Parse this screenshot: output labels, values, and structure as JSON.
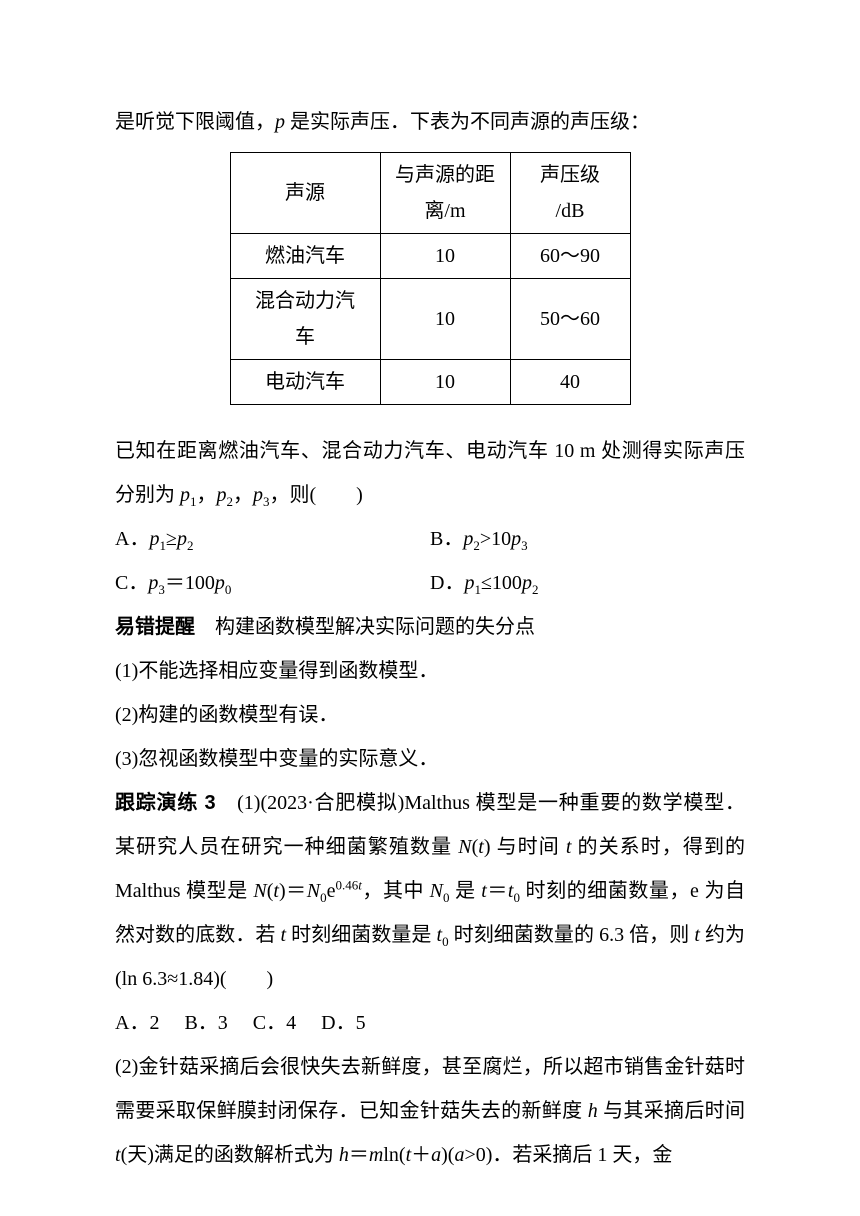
{
  "intro": "是听觉下限阈值，",
  "intro_p": "p",
  "intro_rest": " 是实际声压．下表为不同声源的声压级：",
  "table": {
    "header": {
      "c1": "声源",
      "c2a": "与声源的距",
      "c2b": "离/m",
      "c3a": "声压级",
      "c3b": "/dB"
    },
    "rows": [
      {
        "c1": "燃油汽车",
        "c2": "10",
        "c3": "60～90"
      },
      {
        "c1a": "混合动力汽",
        "c1b": "车",
        "c2": "10",
        "c3": "50～60"
      },
      {
        "c1": "电动汽车",
        "c2": "10",
        "c3": "40"
      }
    ]
  },
  "known": "已知在距离燃油汽车、混合动力汽车、电动汽车 10 m 处测得实际声压分别为 ",
  "known_tail": "，则(　　)",
  "optsA": {
    "A": "A．",
    "B": "B．",
    "C": "C．",
    "D": "D．"
  },
  "warn_title": "易错提醒",
  "warn_sub": "　构建函数模型解决实际问题的失分点",
  "warn1": "(1)不能选择相应变量得到函数模型．",
  "warn2": "(2)构建的函数模型有误．",
  "warn3": "(3)忽视函数模型中变量的实际意义．",
  "ex3_label": "跟踪演练 3",
  "ex3_1a": "　(1)(2023·合肥模拟)Malthus 模型是一种重要的数学模型．某研究人员在研究一种细菌繁殖数量 ",
  "ex3_1b": " 与时间 ",
  "ex3_1c": " 的关系时，得到的 Malthus 模型是 ",
  "ex3_1d": "，其中 ",
  "ex3_1e": " 是 ",
  "ex3_1f": " 时刻的细菌数量，e 为自然对数的底数．若 ",
  "ex3_1g": " 时刻细菌数量是 ",
  "ex3_1h": " 时刻细菌数量的 6.3 倍，则 ",
  "ex3_1i": " 约为(ln 6.3≈1.84)(　　)",
  "opts2": {
    "A": "A．2",
    "B": "B．3",
    "C": "C．4",
    "D": "D．5"
  },
  "ex3_2a": "(2)金针菇采摘后会很快失去新鲜度，甚至腐烂，所以超市销售金针菇时需要采取保鲜膜封闭保存．已知金针菇失去的新鲜度 ",
  "ex3_2b": " 与其采摘后时间 ",
  "ex3_2c": "(天)满足的函数解析式为 ",
  "ex3_2d": "．若采摘后 1 天，金",
  "colors": {
    "text": "#000000",
    "bg": "#ffffff",
    "border": "#000000"
  }
}
